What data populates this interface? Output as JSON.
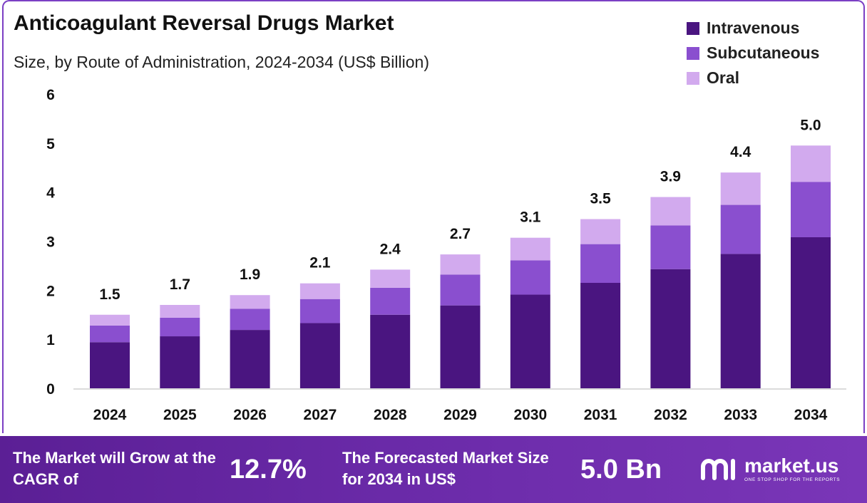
{
  "header": {
    "title": "Anticoagulant Reversal Drugs Market",
    "subtitle": "Size, by Route of Administration, 2024-2034 (US$ Billion)"
  },
  "colors": {
    "intravenous": "#4a1580",
    "subcutaneous": "#8a4fcf",
    "oral": "#d2aaee",
    "footer": "#6a2aa8"
  },
  "chart_data": {
    "type": "bar",
    "stacked": true,
    "categories": [
      "2024",
      "2025",
      "2026",
      "2027",
      "2028",
      "2029",
      "2030",
      "2031",
      "2032",
      "2033",
      "2034"
    ],
    "series": [
      {
        "name": "Intravenous",
        "values": [
          0.94,
          1.06,
          1.19,
          1.33,
          1.5,
          1.69,
          1.91,
          2.15,
          2.43,
          2.74,
          3.08
        ]
      },
      {
        "name": "Subcutaneous",
        "values": [
          0.34,
          0.38,
          0.43,
          0.49,
          0.55,
          0.63,
          0.7,
          0.79,
          0.89,
          1.0,
          1.13
        ]
      },
      {
        "name": "Oral",
        "values": [
          0.22,
          0.26,
          0.28,
          0.32,
          0.37,
          0.41,
          0.46,
          0.51,
          0.58,
          0.66,
          0.74
        ]
      }
    ],
    "totals": [
      "1.5",
      "1.7",
      "1.9",
      "2.1",
      "2.4",
      "2.7",
      "3.1",
      "3.5",
      "3.9",
      "4.4",
      "5.0"
    ],
    "yticks": [
      "0",
      "1",
      "2",
      "3",
      "4",
      "5",
      "6"
    ],
    "ylim": [
      0,
      6
    ],
    "grid": false,
    "legend": "top-right"
  },
  "footer": {
    "cagr_text": "The Market will Grow at the CAGR of",
    "cagr_value": "12.7%",
    "forecast_text": "The Forecasted Market Size for 2034 in US$",
    "forecast_value": "5.0 Bn",
    "logo_name": "market.us",
    "logo_tagline": "ONE STOP SHOP FOR THE REPORTS",
    "logo_icon": "market-us-logo-icon"
  }
}
